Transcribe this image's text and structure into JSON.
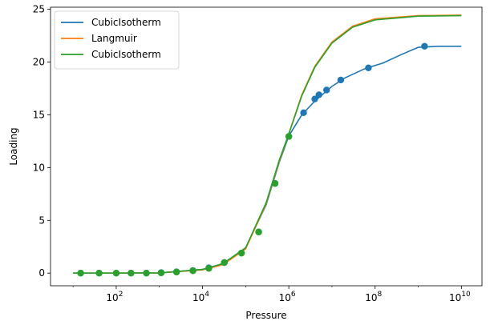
{
  "chart_data": {
    "type": "line",
    "title": "",
    "xlabel": "Pressure",
    "ylabel": "Loading",
    "xscale": "log",
    "xlim": [
      3.0,
      30000000000
    ],
    "ylim": [
      -1.2,
      25.2
    ],
    "grid": false,
    "legend_position": "top-left",
    "x_ticks": [
      {
        "value": 100,
        "base": "10",
        "exp": "2"
      },
      {
        "value": 10000,
        "base": "10",
        "exp": "4"
      },
      {
        "value": 1000000,
        "base": "10",
        "exp": "6"
      },
      {
        "value": 100000000,
        "base": "10",
        "exp": "8"
      },
      {
        "value": 10000000000,
        "base": "10",
        "exp": "10"
      }
    ],
    "y_ticks": [
      0,
      5,
      10,
      15,
      20,
      25
    ],
    "series": [
      {
        "name": "CubicIsotherm",
        "color": "#1f77b4",
        "line": [
          [
            10,
            0.0
          ],
          [
            100,
            0.005
          ],
          [
            1000,
            0.02
          ],
          [
            10000,
            0.35
          ],
          [
            30000,
            0.9
          ],
          [
            100000,
            2.4
          ],
          [
            300000,
            6.5
          ],
          [
            600000,
            10.5
          ],
          [
            1000000,
            13.0
          ],
          [
            2000000,
            15.0
          ],
          [
            4000000,
            16.3
          ],
          [
            10000000,
            17.7
          ],
          [
            20000000,
            18.5
          ],
          [
            60000000,
            19.4
          ],
          [
            150000000,
            19.9
          ],
          [
            400000000,
            20.7
          ],
          [
            1000000000,
            21.4
          ],
          [
            3000000000,
            21.5
          ],
          [
            10000000000,
            21.5
          ]
        ],
        "points": [
          [
            15,
            0.0
          ],
          [
            40,
            0.0
          ],
          [
            100,
            0.0
          ],
          [
            220,
            0.0
          ],
          [
            500,
            0.0
          ],
          [
            1100,
            0.05
          ],
          [
            2500,
            0.12
          ],
          [
            6000,
            0.25
          ],
          [
            14000,
            0.5
          ],
          [
            32000,
            1.0
          ],
          [
            80000,
            1.9
          ],
          [
            200000,
            3.9
          ],
          [
            480000,
            8.5
          ],
          [
            1000000,
            12.95
          ],
          [
            2200000,
            15.2
          ],
          [
            4000000,
            16.5
          ],
          [
            5000000,
            16.9
          ],
          [
            7500000,
            17.35
          ],
          [
            16000000,
            18.3
          ],
          [
            70000000,
            19.45
          ],
          [
            1400000000,
            21.5
          ]
        ]
      },
      {
        "name": "Langmuir",
        "color": "#ff7f0e",
        "line": [
          [
            10,
            0.0
          ],
          [
            100,
            0.005
          ],
          [
            1000,
            0.02
          ],
          [
            10000,
            0.3
          ],
          [
            30000,
            0.8
          ],
          [
            100000,
            2.3
          ],
          [
            300000,
            6.6
          ],
          [
            600000,
            10.6
          ],
          [
            1000000,
            13.2
          ],
          [
            2000000,
            16.9
          ],
          [
            4000000,
            19.6
          ],
          [
            10000000,
            21.9
          ],
          [
            30000000,
            23.4
          ],
          [
            100000000,
            24.1
          ],
          [
            1000000000,
            24.4
          ],
          [
            10000000000,
            24.45
          ]
        ],
        "points": []
      },
      {
        "name": "CubicIsotherm",
        "color": "#2ca02c",
        "line": [
          [
            10,
            0.0
          ],
          [
            100,
            0.005
          ],
          [
            1000,
            0.02
          ],
          [
            10000,
            0.35
          ],
          [
            30000,
            0.9
          ],
          [
            100000,
            2.4
          ],
          [
            300000,
            6.7
          ],
          [
            600000,
            10.7
          ],
          [
            1000000,
            13.2
          ],
          [
            2000000,
            16.8
          ],
          [
            4000000,
            19.5
          ],
          [
            10000000,
            21.8
          ],
          [
            30000000,
            23.3
          ],
          [
            100000000,
            24.0
          ],
          [
            1000000000,
            24.35
          ],
          [
            10000000000,
            24.4
          ]
        ],
        "points": [
          [
            15,
            0.0
          ],
          [
            40,
            0.0
          ],
          [
            100,
            0.0
          ],
          [
            220,
            0.0
          ],
          [
            500,
            0.0
          ],
          [
            1100,
            0.02
          ],
          [
            2500,
            0.1
          ],
          [
            6000,
            0.22
          ],
          [
            14000,
            0.45
          ],
          [
            32000,
            1.0
          ],
          [
            80000,
            1.9
          ],
          [
            200000,
            3.9
          ],
          [
            480000,
            8.5
          ],
          [
            1000000,
            12.95
          ]
        ]
      }
    ]
  }
}
